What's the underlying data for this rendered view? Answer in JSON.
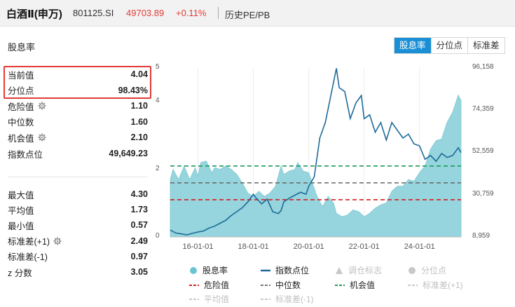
{
  "header": {
    "title": "白酒Ⅱ(申万)",
    "code": "801125.SI",
    "price": "49703.89",
    "change": "+0.11%",
    "subtitle": "历史PE/PB"
  },
  "section_title": "股息率",
  "tabs": [
    {
      "label": "股息率",
      "active": true
    },
    {
      "label": "分位点",
      "active": false
    },
    {
      "label": "标准差",
      "active": false
    }
  ],
  "stats_top": [
    {
      "label": "当前值",
      "value": "4.04",
      "has_icon": false
    },
    {
      "label": "分位点",
      "value": "98.43%",
      "has_icon": false
    },
    {
      "label": "危险值",
      "value": "1.10",
      "has_icon": true
    },
    {
      "label": "中位数",
      "value": "1.60",
      "has_icon": false
    },
    {
      "label": "机会值",
      "value": "2.10",
      "has_icon": true
    },
    {
      "label": "指数点位",
      "value": "49,649.23",
      "has_icon": false
    }
  ],
  "stats_bottom": [
    {
      "label": "最大值",
      "value": "4.30",
      "has_icon": false
    },
    {
      "label": "平均值",
      "value": "1.73",
      "has_icon": false
    },
    {
      "label": "最小值",
      "value": "0.57",
      "has_icon": false
    },
    {
      "label": "标准差(+1)",
      "value": "2.49",
      "has_icon": true
    },
    {
      "label": "标准差(-1)",
      "value": "0.97",
      "has_icon": false
    },
    {
      "label": "z 分数",
      "value": "3.05",
      "has_icon": false
    }
  ],
  "colors": {
    "accent": "#1a8fd6",
    "up_red": "#e23b36",
    "area_fill": "#96d5dd",
    "index_line": "#1e6a9a",
    "danger_line": "#d32020",
    "median_line": "#666666",
    "opportunity_line": "#1f9a5a"
  },
  "chart_data": {
    "type": "area",
    "x_ticks": [
      "16-01-01",
      "18-01-01",
      "20-01-01",
      "22-01-01",
      "24-01-01"
    ],
    "y_left_ticks": [
      "5",
      "4",
      "2",
      "0"
    ],
    "y_left_range": [
      0,
      5
    ],
    "y_right_ticks": [
      "96,158",
      "74,359",
      "52,559",
      "30,759",
      "8,959"
    ],
    "y_right_range": [
      8959,
      96158
    ],
    "reference_lines": [
      {
        "name": "危险值",
        "value": 1.1,
        "style": "dashed",
        "color": "#d32020"
      },
      {
        "name": "中位数",
        "value": 1.6,
        "style": "dashed",
        "color": "#666666"
      },
      {
        "name": "机会值",
        "value": 2.1,
        "style": "dashed",
        "color": "#1f9a5a"
      }
    ],
    "series": [
      {
        "name": "股息率",
        "axis": "left",
        "kind": "area",
        "x": [
          2015.0,
          2015.1,
          2015.3,
          2015.5,
          2015.7,
          2015.9,
          2016.0,
          2016.1,
          2016.3,
          2016.5,
          2016.6,
          2016.8,
          2017.0,
          2017.2,
          2017.4,
          2017.6,
          2017.8,
          2018.0,
          2018.2,
          2018.4,
          2018.6,
          2018.8,
          2019.0,
          2019.1,
          2019.3,
          2019.5,
          2019.6,
          2019.8,
          2020.0,
          2020.3,
          2020.5,
          2020.7,
          2020.9,
          2021.0,
          2021.2,
          2021.4,
          2021.6,
          2021.8,
          2022.0,
          2022.2,
          2022.4,
          2022.6,
          2022.8,
          2023.0,
          2023.2,
          2023.4,
          2023.6,
          2023.8,
          2024.0,
          2024.2,
          2024.4,
          2024.6,
          2024.8,
          2025.0,
          2025.2,
          2025.4,
          2025.5
        ],
        "values": [
          1.7,
          2.0,
          1.7,
          2.1,
          1.7,
          2.05,
          1.8,
          2.2,
          2.25,
          1.9,
          2.05,
          2.0,
          2.1,
          2.0,
          1.85,
          1.6,
          1.3,
          1.2,
          1.35,
          1.2,
          1.3,
          1.5,
          2.1,
          1.85,
          1.95,
          2.0,
          2.2,
          1.95,
          1.9,
          1.2,
          0.9,
          1.2,
          1.0,
          0.7,
          0.6,
          0.65,
          0.8,
          0.75,
          0.6,
          0.7,
          0.85,
          0.95,
          1.0,
          1.35,
          1.5,
          1.5,
          1.7,
          1.65,
          1.9,
          2.1,
          2.6,
          2.85,
          2.9,
          3.4,
          3.7,
          4.2,
          4.04
        ]
      },
      {
        "name": "指数点位",
        "axis": "right",
        "kind": "line",
        "x": [
          2015.0,
          2015.2,
          2015.4,
          2015.6,
          2015.8,
          2016.0,
          2016.2,
          2016.4,
          2016.6,
          2016.8,
          2017.0,
          2017.2,
          2017.4,
          2017.6,
          2017.8,
          2018.0,
          2018.1,
          2018.3,
          2018.5,
          2018.7,
          2018.9,
          2019.0,
          2019.1,
          2019.3,
          2019.5,
          2019.7,
          2019.9,
          2020.0,
          2020.2,
          2020.4,
          2020.6,
          2020.8,
          2021.0,
          2021.1,
          2021.3,
          2021.5,
          2021.7,
          2021.9,
          2022.0,
          2022.2,
          2022.4,
          2022.6,
          2022.8,
          2023.0,
          2023.2,
          2023.4,
          2023.6,
          2023.8,
          2024.0,
          2024.2,
          2024.4,
          2024.6,
          2024.8,
          2025.0,
          2025.2,
          2025.4,
          2025.5
        ],
        "values": [
          12500,
          11000,
          10500,
          10000,
          10800,
          11500,
          12000,
          13500,
          14500,
          16000,
          17500,
          20000,
          22000,
          24000,
          27000,
          31000,
          29000,
          26000,
          28500,
          22000,
          21000,
          22500,
          27000,
          29000,
          30500,
          32000,
          31000,
          35000,
          40000,
          60000,
          68000,
          82000,
          96000,
          86000,
          84000,
          70000,
          78000,
          82000,
          70000,
          72000,
          63000,
          68000,
          59000,
          68000,
          64000,
          60000,
          62000,
          57000,
          56000,
          49000,
          51000,
          48000,
          52000,
          50000,
          51000,
          55000,
          52500
        ]
      }
    ],
    "legend": [
      "股息率",
      "指数点位",
      "调仓标志",
      "分位点",
      "危险值",
      "中位数",
      "机会值",
      "标准差(+1)",
      "平均值",
      "标准差(-1)"
    ]
  },
  "legend_items": [
    {
      "label": "股息率",
      "marker": "dot",
      "color": "#6cc4d2",
      "muted": false
    },
    {
      "label": "指数点位",
      "marker": "line",
      "color": "#1e6a9a",
      "muted": false
    },
    {
      "label": "调仓标志",
      "marker": "triangle",
      "color": "#c8c8c8",
      "muted": true
    },
    {
      "label": "分位点",
      "marker": "dot",
      "color": "#c8c8c8",
      "muted": true
    },
    {
      "label": "危险值",
      "marker": "dash",
      "color": "#d32020",
      "muted": false
    },
    {
      "label": "中位数",
      "marker": "dash",
      "color": "#777777",
      "muted": false
    },
    {
      "label": "机会值",
      "marker": "dash",
      "color": "#1f9a5a",
      "muted": false
    },
    {
      "label": "标准差(+1)",
      "marker": "dash",
      "color": "#c8c8c8",
      "muted": true
    },
    {
      "label": "平均值",
      "marker": "dash",
      "color": "#c8c8c8",
      "muted": true
    },
    {
      "label": "标准差(-1)",
      "marker": "dash",
      "color": "#c8c8c8",
      "muted": true
    }
  ]
}
